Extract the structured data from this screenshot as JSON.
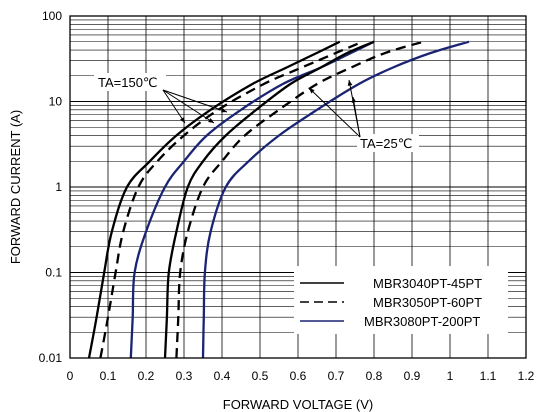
{
  "chart_data": {
    "type": "line",
    "xlabel": "FORWARD VOLTAGE (V)",
    "ylabel": "FORWARD CURRENT (A)",
    "xlim": [
      0,
      1.2
    ],
    "ylim": [
      0.01,
      100
    ],
    "yscale": "log",
    "grid": true,
    "legend_placement": "bottom-right",
    "x_ticks": [
      "0",
      "0.1",
      "0.2",
      "0.3",
      "0.4",
      "0.5",
      "0.6",
      "0.7",
      "0.8",
      "0.9",
      "1",
      "1.1",
      "1.2"
    ],
    "y_ticks": [
      "0.01",
      "0.1",
      "1",
      "10",
      "100"
    ],
    "legend": [
      {
        "name": "MBR3040PT-45PT",
        "style": "solid",
        "color": "#000000"
      },
      {
        "name": "MBR3050PT-60PT",
        "style": "dashed",
        "color": "#000000"
      },
      {
        "name": "MBR3080PT-200PT",
        "style": "solid",
        "color": "#1a2472"
      }
    ],
    "annotations": [
      {
        "text": "TA=150℃"
      },
      {
        "text": "TA=25℃"
      }
    ],
    "series": [
      {
        "legend_index": 0,
        "temperature": "TA=150℃",
        "points": [
          [
            0.05,
            0.01
          ],
          [
            0.07,
            0.03
          ],
          [
            0.09,
            0.1
          ],
          [
            0.11,
            0.3
          ],
          [
            0.15,
            1
          ],
          [
            0.21,
            2
          ],
          [
            0.28,
            4
          ],
          [
            0.37,
            8
          ],
          [
            0.48,
            16
          ],
          [
            0.57,
            25
          ],
          [
            0.65,
            37
          ],
          [
            0.71,
            50
          ]
        ]
      },
      {
        "legend_index": 1,
        "temperature": "TA=150℃",
        "points": [
          [
            0.08,
            0.01
          ],
          [
            0.1,
            0.03
          ],
          [
            0.12,
            0.1
          ],
          [
            0.14,
            0.3
          ],
          [
            0.18,
            1
          ],
          [
            0.23,
            2
          ],
          [
            0.3,
            4
          ],
          [
            0.39,
            8
          ],
          [
            0.51,
            16
          ],
          [
            0.61,
            25
          ],
          [
            0.7,
            37
          ],
          [
            0.77,
            50
          ]
        ]
      },
      {
        "legend_index": 2,
        "temperature": "TA=150℃",
        "points": [
          [
            0.16,
            0.01
          ],
          [
            0.165,
            0.03
          ],
          [
            0.17,
            0.1
          ],
          [
            0.2,
            0.3
          ],
          [
            0.25,
            1
          ],
          [
            0.3,
            2
          ],
          [
            0.36,
            4
          ],
          [
            0.45,
            8
          ],
          [
            0.56,
            16
          ],
          [
            0.66,
            25
          ],
          [
            0.74,
            37
          ],
          [
            0.8,
            50
          ]
        ]
      },
      {
        "legend_index": 0,
        "temperature": "TA=25℃",
        "points": [
          [
            0.25,
            0.01
          ],
          [
            0.255,
            0.03
          ],
          [
            0.26,
            0.1
          ],
          [
            0.28,
            0.3
          ],
          [
            0.31,
            1
          ],
          [
            0.35,
            2
          ],
          [
            0.41,
            4
          ],
          [
            0.49,
            8
          ],
          [
            0.58,
            16
          ],
          [
            0.66,
            25
          ],
          [
            0.73,
            37
          ],
          [
            0.8,
            50
          ]
        ]
      },
      {
        "legend_index": 1,
        "temperature": "TA=25℃",
        "points": [
          [
            0.28,
            0.01
          ],
          [
            0.285,
            0.03
          ],
          [
            0.29,
            0.1
          ],
          [
            0.31,
            0.3
          ],
          [
            0.35,
            1
          ],
          [
            0.4,
            2
          ],
          [
            0.46,
            4
          ],
          [
            0.55,
            8
          ],
          [
            0.65,
            16
          ],
          [
            0.74,
            25
          ],
          [
            0.83,
            37
          ],
          [
            0.93,
            50
          ]
        ]
      },
      {
        "legend_index": 2,
        "temperature": "TA=25℃",
        "points": [
          [
            0.35,
            0.01
          ],
          [
            0.352,
            0.03
          ],
          [
            0.355,
            0.1
          ],
          [
            0.37,
            0.3
          ],
          [
            0.41,
            1
          ],
          [
            0.47,
            2
          ],
          [
            0.55,
            4
          ],
          [
            0.65,
            8
          ],
          [
            0.76,
            16
          ],
          [
            0.85,
            25
          ],
          [
            0.95,
            37
          ],
          [
            1.05,
            50
          ]
        ]
      }
    ]
  }
}
